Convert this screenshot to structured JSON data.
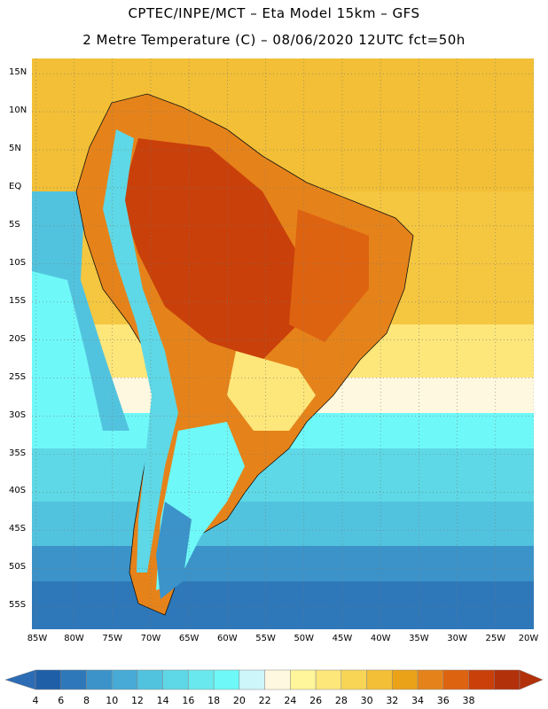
{
  "header": {
    "line1": "CPTEC/INPE/MCT –  Eta Model 15km – GFS",
    "line2": "2 Metre Temperature (C) – 08/06/2020 12UTC fct=50h"
  },
  "axes": {
    "lat_labels": [
      "15N",
      "10N",
      "5N",
      "EQ",
      "5S",
      "10S",
      "15S",
      "20S",
      "25S",
      "30S",
      "35S",
      "40S",
      "45S",
      "50S",
      "55S"
    ],
    "lat_values": [
      15,
      10,
      5,
      0,
      -5,
      -10,
      -15,
      -20,
      -25,
      -30,
      -35,
      -40,
      -45,
      -50,
      -55
    ],
    "lon_labels": [
      "85W",
      "80W",
      "75W",
      "70W",
      "65W",
      "60W",
      "55W",
      "50W",
      "45W",
      "40W",
      "35W",
      "30W",
      "25W",
      "20W"
    ],
    "lon_values": [
      -85,
      -80,
      -75,
      -70,
      -65,
      -60,
      -55,
      -50,
      -45,
      -40,
      -35,
      -30,
      -25,
      -20
    ],
    "lat_range": [
      -58,
      17
    ],
    "lon_range": [
      -85.5,
      -20
    ]
  },
  "colorbar": {
    "labels": [
      "4",
      "6",
      "8",
      "10",
      "12",
      "14",
      "16",
      "18",
      "20",
      "22",
      "24",
      "26",
      "28",
      "30",
      "32",
      "34",
      "36",
      "38"
    ],
    "colors": [
      "#1f5fa8",
      "#2e78b9",
      "#3b93c9",
      "#47abd6",
      "#52c3de",
      "#5ed8e6",
      "#69e9ee",
      "#6ff8f8",
      "#cdf6fb",
      "#fff8e0",
      "#fff59a",
      "#fde67a",
      "#f8d555",
      "#f2bf36",
      "#eaa218",
      "#e5831a",
      "#de6310",
      "#c9400a",
      "#b2300a"
    ],
    "under_color": "#2b6cb5",
    "over_color": "#b2300a"
  }
}
